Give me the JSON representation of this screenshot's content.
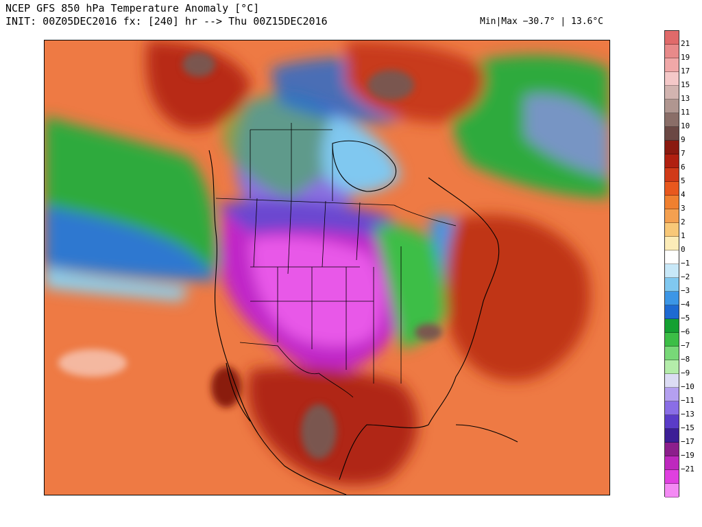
{
  "header": {
    "title_line1": "NCEP GFS 850 hPa Temperature Anomaly [°C]",
    "title_line2": "INIT: 00Z05DEC2016 fx: [240] hr --> Thu 00Z15DEC2016",
    "minmax": "Min|Max −30.7° | 13.6°C"
  },
  "map": {
    "region": "North America",
    "variable": "850 hPa temperature anomaly",
    "units": "°C"
  },
  "colorbar": {
    "labels": [
      "21",
      "19",
      "17",
      "15",
      "13",
      "11",
      "10",
      "9",
      "7",
      "6",
      "5",
      "4",
      "3",
      "2",
      "1",
      "0",
      "−1",
      "−2",
      "−3",
      "−4",
      "−5",
      "−6",
      "−7",
      "−8",
      "−9",
      "−10",
      "−11",
      "−13",
      "−15",
      "−17",
      "−19",
      "−21"
    ],
    "colors": [
      "#e06a6a",
      "#e88a8a",
      "#f0a8a8",
      "#f4c8c8",
      "#d2b4b0",
      "#b09690",
      "#8a6e68",
      "#6b4844",
      "#8a1a10",
      "#b02010",
      "#d03a18",
      "#e8581e",
      "#f08030",
      "#f4a050",
      "#f8c878",
      "#fcecb8",
      "#ffffff",
      "#c8e8f8",
      "#80c8f0",
      "#3c96e6",
      "#1e6ad2",
      "#14a032",
      "#3cbe46",
      "#78d878",
      "#b4ecaa",
      "#dcdcf4",
      "#b4a0f0",
      "#8a6ee6",
      "#5a3cc8",
      "#3c1e96",
      "#8c1e8c",
      "#be28be",
      "#e040e0",
      "#f48af4"
    ]
  }
}
